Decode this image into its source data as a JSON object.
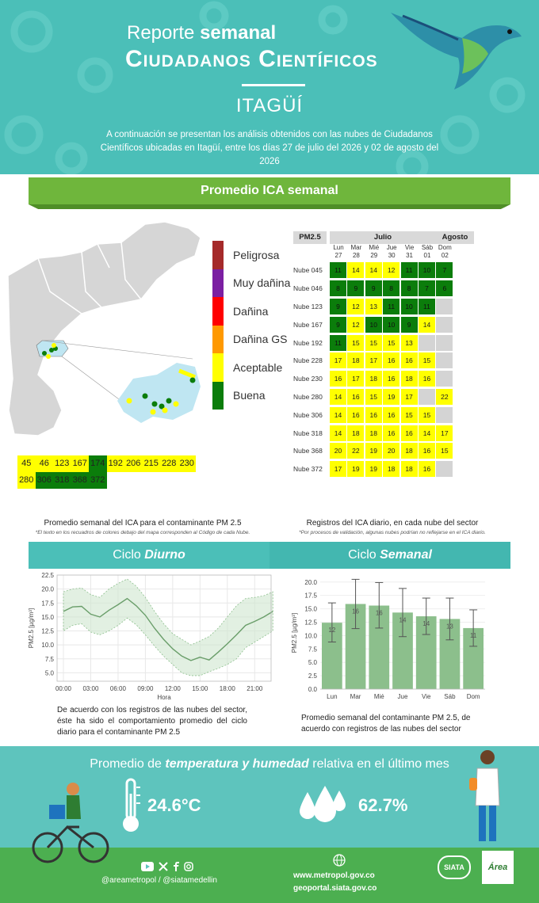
{
  "header": {
    "title_light": "Reporte",
    "title_bold": "semanal",
    "title_main": "Ciudadanos Científicos",
    "city": "ITAGÜÍ",
    "description": "A continuación se presentan los análisis obtenidos con las nubes de Ciudadanos Científicos ubicadas en Itagüí, entre los días 27 de julio del 2026 y 02 de agosto del 2026"
  },
  "ica_banner": "Promedio ICA semanal",
  "legend": [
    {
      "label": "Peligrosa",
      "color": "#a52a2a"
    },
    {
      "label": "Muy dañina",
      "color": "#7b1fa2"
    },
    {
      "label": "Dañina",
      "color": "#ff0000"
    },
    {
      "label": "Dañina GS",
      "color": "#ff9900"
    },
    {
      "label": "Aceptable",
      "color": "#ffff00"
    },
    {
      "label": "Buena",
      "color": "#0b7d0b"
    }
  ],
  "codes": {
    "row1": [
      {
        "v": "45",
        "c": "y"
      },
      {
        "v": "46",
        "c": "y"
      },
      {
        "v": "123",
        "c": "y"
      },
      {
        "v": "167",
        "c": "y"
      },
      {
        "v": "174",
        "c": "g"
      },
      {
        "v": "192",
        "c": "y"
      },
      {
        "v": "206",
        "c": "y"
      },
      {
        "v": "215",
        "c": "y"
      },
      {
        "v": "228",
        "c": "y"
      },
      {
        "v": "230",
        "c": "y"
      }
    ],
    "row2": [
      {
        "v": "280",
        "c": "y"
      },
      {
        "v": "306",
        "c": "g"
      },
      {
        "v": "318",
        "c": "g"
      },
      {
        "v": "368",
        "c": "g"
      },
      {
        "v": "372",
        "c": "g"
      }
    ]
  },
  "table": {
    "pollutant": "PM2.5",
    "month1": "Julio",
    "month2": "Agosto",
    "days": [
      [
        "Lun",
        "27"
      ],
      [
        "Mar",
        "28"
      ],
      [
        "Mié",
        "29"
      ],
      [
        "Jue",
        "30"
      ],
      [
        "Vie",
        "31"
      ],
      [
        "Sáb",
        "01"
      ],
      [
        "Dom",
        "02"
      ]
    ],
    "rows": [
      {
        "name": "Nube 045",
        "cells": [
          [
            "11",
            "g"
          ],
          [
            "14",
            "y"
          ],
          [
            "14",
            "y"
          ],
          [
            "12",
            "y"
          ],
          [
            "11",
            "g"
          ],
          [
            "10",
            "g"
          ],
          [
            "7",
            "g"
          ]
        ]
      },
      {
        "name": "Nube 046",
        "cells": [
          [
            "8",
            "g"
          ],
          [
            "9",
            "g"
          ],
          [
            "9",
            "g"
          ],
          [
            "8",
            "g"
          ],
          [
            "8",
            "g"
          ],
          [
            "7",
            "g"
          ],
          [
            "6",
            "g"
          ]
        ]
      },
      {
        "name": "Nube 123",
        "cells": [
          [
            "9",
            "g"
          ],
          [
            "12",
            "y"
          ],
          [
            "13",
            "y"
          ],
          [
            "11",
            "g"
          ],
          [
            "10",
            "g"
          ],
          [
            "11",
            "g"
          ],
          [
            "",
            "x"
          ]
        ]
      },
      {
        "name": "Nube 167",
        "cells": [
          [
            "9",
            "g"
          ],
          [
            "12",
            "y"
          ],
          [
            "10",
            "g"
          ],
          [
            "10",
            "g"
          ],
          [
            "9",
            "g"
          ],
          [
            "14",
            "y"
          ],
          [
            "",
            "x"
          ]
        ]
      },
      {
        "name": "Nube 192",
        "cells": [
          [
            "11",
            "g"
          ],
          [
            "15",
            "y"
          ],
          [
            "15",
            "y"
          ],
          [
            "15",
            "y"
          ],
          [
            "13",
            "y"
          ],
          [
            "",
            "x"
          ],
          [
            "",
            "x"
          ]
        ]
      },
      {
        "name": "Nube 228",
        "cells": [
          [
            "17",
            "y"
          ],
          [
            "18",
            "y"
          ],
          [
            "17",
            "y"
          ],
          [
            "16",
            "y"
          ],
          [
            "16",
            "y"
          ],
          [
            "15",
            "y"
          ],
          [
            "",
            "x"
          ]
        ]
      },
      {
        "name": "Nube 230",
        "cells": [
          [
            "16",
            "y"
          ],
          [
            "17",
            "y"
          ],
          [
            "18",
            "y"
          ],
          [
            "16",
            "y"
          ],
          [
            "18",
            "y"
          ],
          [
            "16",
            "y"
          ],
          [
            "",
            "x"
          ]
        ]
      },
      {
        "name": "Nube 280",
        "cells": [
          [
            "14",
            "y"
          ],
          [
            "16",
            "y"
          ],
          [
            "15",
            "y"
          ],
          [
            "19",
            "y"
          ],
          [
            "17",
            "y"
          ],
          [
            "",
            "x"
          ],
          [
            "22",
            "y"
          ]
        ]
      },
      {
        "name": "Nube 306",
        "cells": [
          [
            "14",
            "y"
          ],
          [
            "16",
            "y"
          ],
          [
            "16",
            "y"
          ],
          [
            "16",
            "y"
          ],
          [
            "15",
            "y"
          ],
          [
            "15",
            "y"
          ],
          [
            "",
            "x"
          ]
        ]
      },
      {
        "name": "Nube 318",
        "cells": [
          [
            "14",
            "y"
          ],
          [
            "18",
            "y"
          ],
          [
            "18",
            "y"
          ],
          [
            "16",
            "y"
          ],
          [
            "16",
            "y"
          ],
          [
            "14",
            "y"
          ],
          [
            "17",
            "y"
          ]
        ]
      },
      {
        "name": "Nube 368",
        "cells": [
          [
            "20",
            "y"
          ],
          [
            "22",
            "y"
          ],
          [
            "19",
            "y"
          ],
          [
            "20",
            "y"
          ],
          [
            "18",
            "y"
          ],
          [
            "16",
            "y"
          ],
          [
            "15",
            "y"
          ]
        ]
      },
      {
        "name": "Nube 372",
        "cells": [
          [
            "17",
            "y"
          ],
          [
            "19",
            "y"
          ],
          [
            "19",
            "y"
          ],
          [
            "18",
            "y"
          ],
          [
            "18",
            "y"
          ],
          [
            "16",
            "y"
          ],
          [
            "",
            "x"
          ]
        ]
      }
    ]
  },
  "captions": {
    "map_caption": "Promedio semanal del ICA para el contaminante PM 2.5",
    "map_note": "*El texto en los recuadros de colores debajo del mapa corresponden al Código de cada Nube.",
    "table_caption": "Registros del ICA diario, en cada nube del sector",
    "table_note": "*Por procesos de validación, algunas nubes podrían no reflejarse en el ICA diario."
  },
  "cycle_daily": {
    "title_plain": "Ciclo",
    "title_bold": "Diurno",
    "paragraph": "De acuerdo con los registros de las nubes del sector, éste ha sido el comportamiento promedio del ciclo diario para el contaminante PM 2.5"
  },
  "cycle_weekly": {
    "title_plain": "Ciclo",
    "title_bold": "Semanal",
    "paragraph": "Promedio semanal del contaminante PM 2.5, de acuerdo con registros de las nubes del sector"
  },
  "chart_data": [
    {
      "type": "line",
      "xlabel": "Hora",
      "ylabel": "PM2.5 [µg/m³]",
      "ylim": [
        3.5,
        22.5
      ],
      "yticks": [
        "5.0",
        "7.5",
        "10.0",
        "12.5",
        "15.0",
        "17.5",
        "20.0",
        "22.5"
      ],
      "xticks": [
        "00:00",
        "03:00",
        "06:00",
        "09:00",
        "12:00",
        "15:00",
        "18:00",
        "21:00"
      ],
      "x": [
        0,
        1,
        2,
        3,
        4,
        5,
        6,
        7,
        8,
        9,
        10,
        11,
        12,
        13,
        14,
        15,
        16,
        17,
        18,
        19,
        20,
        21,
        22,
        23
      ],
      "mean": [
        16.0,
        16.8,
        16.9,
        15.5,
        15.0,
        16.2,
        17.2,
        18.3,
        17.0,
        15.3,
        13.0,
        11.0,
        9.3,
        8.0,
        7.2,
        7.8,
        7.3,
        8.7,
        10.2,
        11.8,
        13.5,
        14.2,
        15.0,
        16.0
      ],
      "upper": [
        19.5,
        20.0,
        20.2,
        19.0,
        18.5,
        20.0,
        21.0,
        21.8,
        20.5,
        18.5,
        16.0,
        13.8,
        12.0,
        11.0,
        10.0,
        10.7,
        11.5,
        13.0,
        15.0,
        17.0,
        18.3,
        18.5,
        18.8,
        19.5
      ],
      "lower": [
        12.5,
        13.5,
        13.8,
        12.3,
        11.8,
        12.5,
        13.5,
        14.8,
        13.6,
        11.8,
        9.8,
        8.0,
        6.5,
        5.0,
        4.5,
        4.5,
        5.2,
        5.8,
        6.5,
        7.5,
        9.5,
        10.5,
        11.5,
        12.5
      ],
      "color": "#6a9e6a"
    },
    {
      "type": "bar",
      "ylabel": "PM2.5 [µg/m³]",
      "ylim": [
        0,
        21
      ],
      "yticks": [
        "0.0",
        "2.5",
        "5.0",
        "7.5",
        "10.0",
        "12.5",
        "15.0",
        "17.5",
        "20.0"
      ],
      "categories": [
        "Lun",
        "Mar",
        "Mié",
        "Jue",
        "Vie",
        "Sáb",
        "Dom"
      ],
      "values": [
        12.4,
        15.9,
        15.6,
        14.3,
        13.6,
        13.1,
        11.4
      ],
      "labels": [
        "12",
        "16",
        "16",
        "14",
        "14",
        "13",
        "11"
      ],
      "err_low": [
        8.8,
        11.3,
        11.4,
        9.8,
        10.2,
        9.2,
        8.0
      ],
      "err_high": [
        16.1,
        20.5,
        19.9,
        18.8,
        17.0,
        17.0,
        14.8
      ],
      "color": "#8cbf8c"
    }
  ],
  "footer": {
    "title_pre": "Promedio de",
    "title_bold": "temperatura y humedad",
    "title_post": "relativa en el último mes",
    "temperature": "24.6°C",
    "humidity": "62.7%",
    "social_handles": "@areametropol / @siatamedellin",
    "web1": "www.metropol.gov.co",
    "web2": "geoportal.siata.gov.co",
    "logo_siata": "SIATA",
    "logo_area": "Área"
  }
}
